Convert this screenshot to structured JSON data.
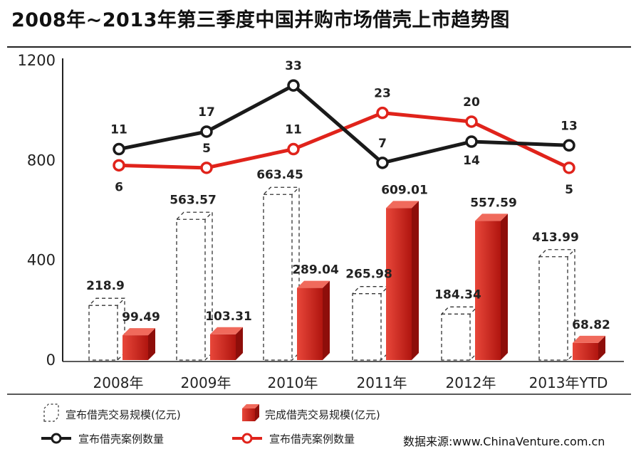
{
  "title": "2008年~2013年第三季度中国并购市场借壳上市趋势图",
  "source": "数据来源:www.ChinaVenture.com.cn",
  "colors": {
    "completed_bar_light": "#e8473a",
    "completed_bar_dark": "#b0150f",
    "announced_line": "#1a1a1a",
    "completed_line": "#e0231b"
  },
  "chart_data": {
    "type": "bar",
    "categories": [
      "2008年",
      "2009年",
      "2010年",
      "2011年",
      "2012年",
      "2013年YTD"
    ],
    "ylim": [
      0,
      1200
    ],
    "yticks": [
      "0",
      "400",
      "800",
      "1200"
    ],
    "series": [
      {
        "name": "宣布借壳交易规模(亿元)",
        "kind": "bar-dashed-outline",
        "values": [
          218.9,
          563.57,
          663.45,
          265.98,
          184.34,
          413.99
        ],
        "labels": [
          "218.9",
          "563.57",
          "663.45",
          "265.98",
          "184.34",
          "413.99"
        ]
      },
      {
        "name": "完成借壳交易规模(亿元)",
        "kind": "bar-red-3d",
        "values": [
          99.49,
          103.31,
          289.04,
          609.01,
          557.59,
          68.82
        ],
        "labels": [
          "99.49",
          "103.31",
          "289.04",
          "609.01",
          "557.59",
          "68.82"
        ]
      },
      {
        "name": "宣布借壳案例数量",
        "kind": "line-black",
        "values": [
          11,
          17,
          33,
          7,
          14,
          13
        ],
        "labels": [
          "11",
          "17",
          "33",
          "7",
          "14",
          "13"
        ],
        "plotted_level": [
          845,
          915,
          1100,
          790,
          875,
          860
        ]
      },
      {
        "name": "宣布借壳案例数量",
        "kind": "line-red",
        "values": [
          6,
          5,
          11,
          23,
          20,
          5
        ],
        "labels": [
          "6",
          "5",
          "11",
          "23",
          "20",
          "5"
        ],
        "plotted_level": [
          780,
          770,
          845,
          990,
          955,
          770
        ]
      }
    ],
    "legend": {
      "position": "bottom",
      "items": [
        "宣布借壳交易规模(亿元)",
        "完成借壳交易规模(亿元)",
        "宣布借壳案例数量",
        "宣布借壳案例数量"
      ]
    },
    "grid": false
  }
}
